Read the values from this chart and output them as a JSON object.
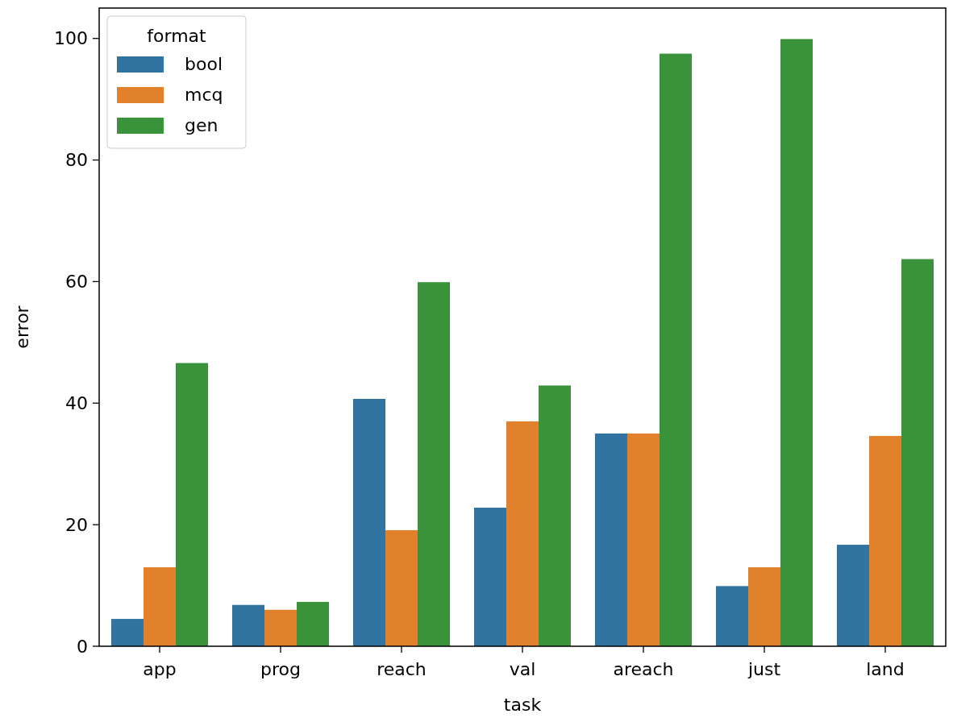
{
  "chart_data": {
    "type": "bar",
    "xlabel": "task",
    "ylabel": "error",
    "legend_title": "format",
    "legend": "top left",
    "grid": false,
    "categories": [
      "app",
      "prog",
      "reach",
      "val",
      "areach",
      "just",
      "land"
    ],
    "series": [
      {
        "name": "bool",
        "color": "#3274a1",
        "values": [
          4.5,
          6.8,
          40.7,
          22.8,
          35.0,
          9.9,
          16.7
        ]
      },
      {
        "name": "mcq",
        "color": "#e1812c",
        "values": [
          13.0,
          6.0,
          19.1,
          37.0,
          35.0,
          13.0,
          34.6
        ]
      },
      {
        "name": "gen",
        "color": "#3a923a",
        "values": [
          46.6,
          7.3,
          59.9,
          42.9,
          97.5,
          99.9,
          63.7
        ]
      }
    ],
    "ylim": [
      0,
      105
    ],
    "yticks": [
      0,
      20,
      40,
      60,
      80,
      100
    ]
  }
}
